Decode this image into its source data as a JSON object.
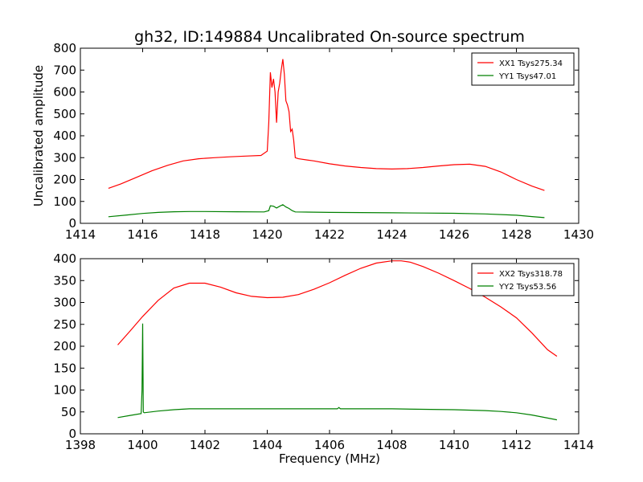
{
  "figure": {
    "title": "gh32, ID:149884 Uncalibrated On-source spectrum"
  },
  "colors": {
    "xx": "#ff0000",
    "yy": "#008000",
    "axes": "#000000",
    "background": "#ffffff"
  },
  "chart_data": [
    {
      "type": "line",
      "title": "gh32, ID:149884 Uncalibrated On-source spectrum",
      "xlabel": "",
      "ylabel": "Uncalibrated amplitude",
      "xlim": [
        1414,
        1430
      ],
      "ylim": [
        0,
        800
      ],
      "xticks": [
        1414,
        1416,
        1418,
        1420,
        1422,
        1424,
        1426,
        1428,
        1430
      ],
      "yticks": [
        0,
        100,
        200,
        300,
        400,
        500,
        600,
        700,
        800
      ],
      "legend_position": "top-right",
      "grid": false,
      "series": [
        {
          "name": "XX1 Tsys275.34",
          "color": "#ff0000",
          "x": [
            1414.9,
            1415.3,
            1415.8,
            1416.3,
            1416.8,
            1417.3,
            1417.8,
            1418.3,
            1418.8,
            1419.3,
            1419.8,
            1420.0,
            1420.05,
            1420.1,
            1420.15,
            1420.2,
            1420.25,
            1420.3,
            1420.35,
            1420.4,
            1420.45,
            1420.5,
            1420.55,
            1420.6,
            1420.65,
            1420.7,
            1420.75,
            1420.8,
            1420.85,
            1420.9,
            1421.0,
            1421.5,
            1422.0,
            1422.5,
            1423.0,
            1423.5,
            1424.0,
            1424.5,
            1425.0,
            1425.5,
            1426.0,
            1426.5,
            1427.0,
            1427.5,
            1428.0,
            1428.5,
            1428.9
          ],
          "y": [
            160,
            180,
            210,
            240,
            265,
            285,
            295,
            300,
            304,
            307,
            310,
            330,
            460,
            690,
            620,
            660,
            600,
            460,
            600,
            640,
            700,
            750,
            680,
            560,
            540,
            510,
            420,
            430,
            380,
            300,
            295,
            285,
            272,
            262,
            255,
            250,
            248,
            250,
            255,
            262,
            268,
            270,
            260,
            235,
            200,
            170,
            150
          ]
        },
        {
          "name": "YY1 Tsys47.01",
          "color": "#008000",
          "x": [
            1414.9,
            1415.5,
            1416.0,
            1416.5,
            1417.0,
            1417.5,
            1418.0,
            1419.0,
            1419.9,
            1420.05,
            1420.1,
            1420.2,
            1420.3,
            1420.4,
            1420.5,
            1420.6,
            1420.7,
            1420.8,
            1420.9,
            1421.5,
            1422.0,
            1423.0,
            1424.0,
            1425.0,
            1426.0,
            1427.0,
            1428.0,
            1428.5,
            1428.9
          ],
          "y": [
            30,
            38,
            45,
            50,
            53,
            54,
            54,
            53,
            52,
            58,
            80,
            78,
            70,
            78,
            85,
            75,
            68,
            58,
            52,
            51,
            50,
            49,
            48,
            47,
            46,
            43,
            37,
            31,
            26
          ]
        }
      ]
    },
    {
      "type": "line",
      "title": "",
      "xlabel": "Frequency (MHz)",
      "ylabel": "",
      "xlim": [
        1398,
        1414
      ],
      "ylim": [
        0,
        400
      ],
      "xticks": [
        1398,
        1400,
        1402,
        1404,
        1406,
        1408,
        1410,
        1412,
        1414
      ],
      "yticks": [
        0,
        50,
        100,
        150,
        200,
        250,
        300,
        350,
        400
      ],
      "legend_position": "top-right",
      "grid": false,
      "series": [
        {
          "name": "XX2 Tsys318.78",
          "color": "#ff0000",
          "x": [
            1399.2,
            1399.6,
            1400.0,
            1400.5,
            1401.0,
            1401.5,
            1402.0,
            1402.5,
            1403.0,
            1403.5,
            1404.0,
            1404.5,
            1405.0,
            1405.5,
            1406.0,
            1406.5,
            1407.0,
            1407.5,
            1408.0,
            1408.3,
            1408.6,
            1409.0,
            1409.5,
            1410.0,
            1410.5,
            1411.0,
            1411.5,
            1412.0,
            1412.5,
            1413.0,
            1413.3
          ],
          "y": [
            203,
            235,
            268,
            305,
            333,
            344,
            344,
            335,
            322,
            314,
            311,
            312,
            318,
            330,
            345,
            362,
            378,
            390,
            395,
            395,
            392,
            382,
            367,
            350,
            332,
            312,
            290,
            265,
            230,
            192,
            177
          ]
        },
        {
          "name": "YY2 Tsys53.56",
          "color": "#008000",
          "x": [
            1399.2,
            1399.6,
            1399.95,
            1399.98,
            1400.0,
            1400.02,
            1400.05,
            1400.5,
            1401.0,
            1401.5,
            1402.0,
            1403.0,
            1404.0,
            1405.0,
            1406.0,
            1406.25,
            1406.3,
            1406.35,
            1407.0,
            1408.0,
            1409.0,
            1410.0,
            1411.0,
            1411.5,
            1412.0,
            1412.5,
            1413.0,
            1413.3
          ],
          "y": [
            37,
            42,
            46,
            100,
            252,
            50,
            48,
            52,
            55,
            57,
            57,
            57,
            57,
            57,
            57,
            57,
            60,
            57,
            57,
            57,
            56,
            55,
            53,
            51,
            48,
            43,
            36,
            32
          ]
        }
      ]
    }
  ]
}
